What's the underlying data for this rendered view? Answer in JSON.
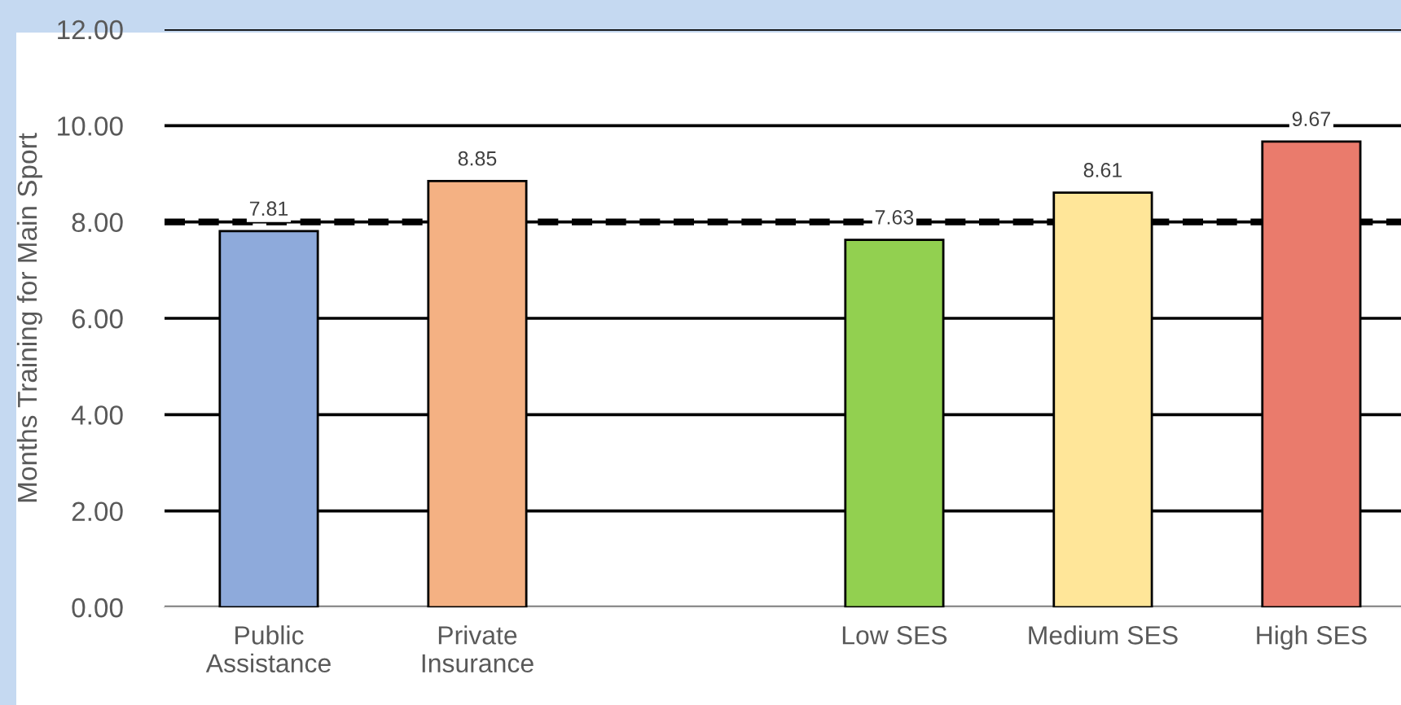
{
  "chart_data": {
    "type": "bar",
    "ylabel": "Months Training for Main Sport",
    "categories": [
      "Public\nAssistance",
      "Private\nInsurance",
      null,
      "Low SES",
      "Medium SES",
      "High SES"
    ],
    "values": [
      7.81,
      8.85,
      null,
      7.63,
      8.61,
      9.67
    ],
    "colors": [
      "#8eaadb",
      "#f4b183",
      null,
      "#92d050",
      "#ffe699",
      "#ea7b6c"
    ],
    "ylim": [
      0,
      12
    ],
    "yticks": [
      {
        "value": 0,
        "label": "0.00"
      },
      {
        "value": 2,
        "label": "2.00"
      },
      {
        "value": 4,
        "label": "4.00"
      },
      {
        "value": 6,
        "label": "6.00"
      },
      {
        "value": 8,
        "label": "8.00"
      },
      {
        "value": 10,
        "label": "10.00"
      },
      {
        "value": 12,
        "label": "12.00"
      }
    ],
    "ref_lines": [
      {
        "axis": "y",
        "value": 8,
        "color": "#000000",
        "line_style": "dashed"
      }
    ],
    "data_labels": true,
    "grid": "y"
  }
}
